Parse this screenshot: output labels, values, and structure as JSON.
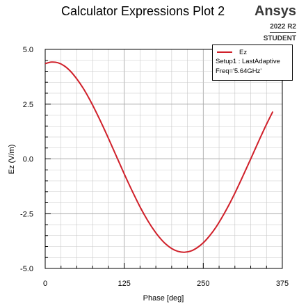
{
  "title": "Calculator Expressions Plot 2",
  "brand": {
    "name": "Ansys",
    "version": "2022 R2",
    "edition": "STUDENT"
  },
  "colors": {
    "series": "#d0202a",
    "grid": "#c8c8c8",
    "axis": "#000000"
  },
  "legend": {
    "series_name": "Ez",
    "setup": "Setup1 : LastAdaptive",
    "freq": "Freq='5.64GHz'"
  },
  "chart_data": {
    "type": "line",
    "title": "Calculator Expressions Plot 2",
    "xlabel": "Phase [deg]",
    "ylabel": "Ez (V/m)",
    "xlim": [
      0,
      375
    ],
    "ylim": [
      -5.0,
      5.0
    ],
    "xticks": [
      "0",
      "125",
      "250",
      "375"
    ],
    "yticks": [
      "5.0",
      "2.5",
      "0.0",
      "-2.5",
      "-5.0"
    ],
    "grid": true,
    "legend_position": "top-right",
    "series": [
      {
        "name": "Ez",
        "x": [
          0,
          10,
          20,
          30,
          40,
          50,
          60,
          70,
          80,
          90,
          100,
          110,
          120,
          130,
          140,
          150,
          160,
          170,
          180,
          190,
          200,
          210,
          220,
          230,
          240,
          250,
          260,
          270,
          280,
          290,
          300,
          310,
          320,
          330,
          340,
          350,
          360
        ],
        "y": [
          4.35,
          4.42,
          4.39,
          4.25,
          4.0,
          3.65,
          3.23,
          2.73,
          2.17,
          1.57,
          0.94,
          0.29,
          -0.36,
          -1.0,
          -1.61,
          -2.19,
          -2.71,
          -3.17,
          -3.56,
          -3.87,
          -4.09,
          -4.22,
          -4.26,
          -4.21,
          -4.06,
          -3.83,
          -3.51,
          -3.12,
          -2.65,
          -2.13,
          -1.56,
          -0.95,
          -0.32,
          0.32,
          0.96,
          1.58,
          2.16
        ]
      }
    ]
  }
}
